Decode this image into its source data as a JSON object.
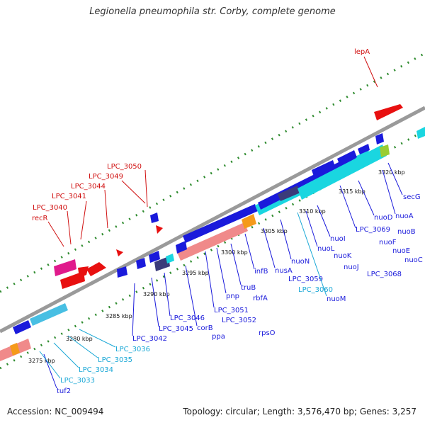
{
  "title": "Legionella pneumophila str. Corby, complete genome",
  "footer": {
    "accession": "Accession: NC_009494",
    "summary": "Topology: circular; Length: 3,576,470 bp; Genes: 3,257"
  },
  "colors": {
    "backbone": "#9a9a9a",
    "tick": "#2e8b2e",
    "gene_forward": "#1a1adb",
    "gene_reverse": "#1a1adb",
    "highlight_cyan": "#1ad6e0",
    "salmon": "#f08a8a",
    "orange": "#f59a1a",
    "red": "#e81010",
    "magenta": "#e01a8c",
    "navy": "#3b3b7a",
    "label_red": "#d01010",
    "label_blue": "#1a1adb",
    "label_cyan": "#1aa8d6"
  },
  "kbp_markers": [
    "3275 kbp",
    "3280 kbp",
    "3285 kbp",
    "3290 kbp",
    "3295 kbp",
    "3300 kbp",
    "3305 kbp",
    "3310 kbp",
    "3315 kbp",
    "3320 kbp"
  ],
  "labels_red": [
    "lepA",
    "LPC_3050",
    "LPC_3049",
    "LPC_3044",
    "LPC_3041",
    "LPC_3040",
    "recR"
  ],
  "labels_blue": [
    "secG",
    "nuoA",
    "nuoD",
    "nuoB",
    "LPC_3069",
    "nuoF",
    "nuoE",
    "nuoC",
    "nuoI",
    "nuoL",
    "nuoK",
    "nuoJ",
    "LPC_3068",
    "nuoN",
    "nuoM",
    "nusA",
    "infB",
    "LPC_3059",
    "truB",
    "rbfA",
    "pnp",
    "LPC_3051",
    "LPC_3052",
    "rpsO",
    "corB",
    "ppa",
    "LPC_3046",
    "LPC_3045",
    "LPC_3042",
    "tuf2"
  ],
  "labels_cyan": [
    "LPC_3060",
    "LPC_3036",
    "LPC_3035",
    "LPC_3034",
    "LPC_3033"
  ]
}
